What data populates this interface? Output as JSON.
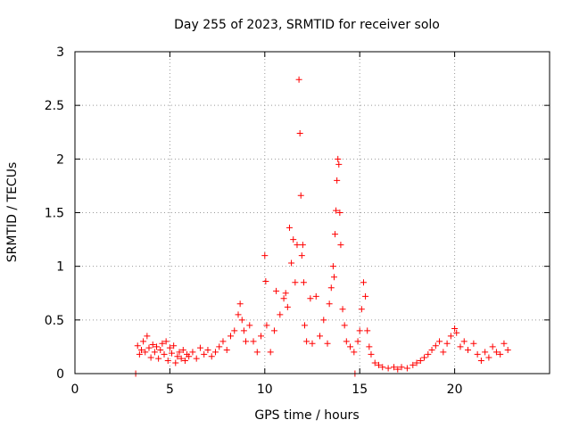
{
  "chart_data": {
    "type": "scatter",
    "title": "Day 255 of 2023, SRMTID for receiver solo",
    "xlabel": "GPS time / hours",
    "ylabel": "SRMTID / TECUs",
    "xlim": [
      0,
      25
    ],
    "ylim": [
      0,
      3
    ],
    "xticks": [
      0,
      5,
      10,
      15,
      20
    ],
    "yticks": [
      0,
      0.5,
      1,
      1.5,
      2,
      2.5,
      3
    ],
    "xtick_labels": [
      "0",
      "5",
      "10",
      "15",
      "20"
    ],
    "ytick_labels": [
      "0",
      "0.5",
      "1",
      "1.5",
      "2",
      "2.5",
      "3"
    ],
    "grid": true,
    "marker": "+",
    "marker_color": "#ff0000",
    "series": [
      {
        "name": "SRMTID",
        "color": "#ff0000",
        "points": [
          [
            3.2,
            0.0
          ],
          [
            14.75,
            0.0
          ],
          [
            3.3,
            0.26
          ],
          [
            3.4,
            0.18
          ],
          [
            3.5,
            0.22
          ],
          [
            3.6,
            0.3
          ],
          [
            3.7,
            0.2
          ],
          [
            3.8,
            0.35
          ],
          [
            3.9,
            0.24
          ],
          [
            4.0,
            0.15
          ],
          [
            4.1,
            0.27
          ],
          [
            4.2,
            0.2
          ],
          [
            4.3,
            0.25
          ],
          [
            4.4,
            0.14
          ],
          [
            4.5,
            0.22
          ],
          [
            4.6,
            0.28
          ],
          [
            4.7,
            0.18
          ],
          [
            4.8,
            0.3
          ],
          [
            4.9,
            0.12
          ],
          [
            5.0,
            0.24
          ],
          [
            5.1,
            0.19
          ],
          [
            5.2,
            0.26
          ],
          [
            5.3,
            0.1
          ],
          [
            5.4,
            0.16
          ],
          [
            5.5,
            0.2
          ],
          [
            5.6,
            0.14
          ],
          [
            5.7,
            0.22
          ],
          [
            5.8,
            0.12
          ],
          [
            5.9,
            0.18
          ],
          [
            6.0,
            0.16
          ],
          [
            6.2,
            0.2
          ],
          [
            6.4,
            0.14
          ],
          [
            6.6,
            0.24
          ],
          [
            6.8,
            0.18
          ],
          [
            7.0,
            0.22
          ],
          [
            7.2,
            0.16
          ],
          [
            7.4,
            0.2
          ],
          [
            7.6,
            0.25
          ],
          [
            7.8,
            0.3
          ],
          [
            8.0,
            0.22
          ],
          [
            8.2,
            0.35
          ],
          [
            8.4,
            0.4
          ],
          [
            8.6,
            0.55
          ],
          [
            8.7,
            0.65
          ],
          [
            8.8,
            0.5
          ],
          [
            8.9,
            0.4
          ],
          [
            9.0,
            0.3
          ],
          [
            9.2,
            0.45
          ],
          [
            9.4,
            0.3
          ],
          [
            9.6,
            0.2
          ],
          [
            9.8,
            0.35
          ],
          [
            10.0,
            1.1
          ],
          [
            10.05,
            0.86
          ],
          [
            10.1,
            0.45
          ],
          [
            10.3,
            0.2
          ],
          [
            10.5,
            0.4
          ],
          [
            10.6,
            0.77
          ],
          [
            10.8,
            0.55
          ],
          [
            11.0,
            0.7
          ],
          [
            11.1,
            0.75
          ],
          [
            11.2,
            0.62
          ],
          [
            11.3,
            1.36
          ],
          [
            11.4,
            1.03
          ],
          [
            11.5,
            1.25
          ],
          [
            11.6,
            0.85
          ],
          [
            11.7,
            1.2
          ],
          [
            11.8,
            2.74
          ],
          [
            11.85,
            2.24
          ],
          [
            11.9,
            1.66
          ],
          [
            11.95,
            1.1
          ],
          [
            12.0,
            1.2
          ],
          [
            12.05,
            0.85
          ],
          [
            12.1,
            0.45
          ],
          [
            12.2,
            0.3
          ],
          [
            12.4,
            0.7
          ],
          [
            12.5,
            0.28
          ],
          [
            12.7,
            0.72
          ],
          [
            12.9,
            0.35
          ],
          [
            13.1,
            0.5
          ],
          [
            13.3,
            0.28
          ],
          [
            13.4,
            0.65
          ],
          [
            13.5,
            0.8
          ],
          [
            13.6,
            1.0
          ],
          [
            13.65,
            0.9
          ],
          [
            13.7,
            1.3
          ],
          [
            13.75,
            1.52
          ],
          [
            13.8,
            1.8
          ],
          [
            13.85,
            2.0
          ],
          [
            13.9,
            1.95
          ],
          [
            13.95,
            1.5
          ],
          [
            14.0,
            1.2
          ],
          [
            14.1,
            0.6
          ],
          [
            14.2,
            0.45
          ],
          [
            14.3,
            0.3
          ],
          [
            14.5,
            0.25
          ],
          [
            14.7,
            0.2
          ],
          [
            14.9,
            0.3
          ],
          [
            15.0,
            0.4
          ],
          [
            15.1,
            0.6
          ],
          [
            15.2,
            0.85
          ],
          [
            15.3,
            0.72
          ],
          [
            15.4,
            0.4
          ],
          [
            15.5,
            0.25
          ],
          [
            15.6,
            0.18
          ],
          [
            15.8,
            0.1
          ],
          [
            16.0,
            0.08
          ],
          [
            16.2,
            0.06
          ],
          [
            16.5,
            0.05
          ],
          [
            16.8,
            0.06
          ],
          [
            17.0,
            0.04
          ],
          [
            17.2,
            0.06
          ],
          [
            17.5,
            0.05
          ],
          [
            17.8,
            0.08
          ],
          [
            18.0,
            0.1
          ],
          [
            18.2,
            0.12
          ],
          [
            18.4,
            0.15
          ],
          [
            18.6,
            0.18
          ],
          [
            18.8,
            0.22
          ],
          [
            19.0,
            0.26
          ],
          [
            19.2,
            0.3
          ],
          [
            19.4,
            0.2
          ],
          [
            19.6,
            0.28
          ],
          [
            19.8,
            0.35
          ],
          [
            20.0,
            0.42
          ],
          [
            20.1,
            0.38
          ],
          [
            20.3,
            0.25
          ],
          [
            20.5,
            0.3
          ],
          [
            20.7,
            0.22
          ],
          [
            21.0,
            0.28
          ],
          [
            21.2,
            0.18
          ],
          [
            21.4,
            0.12
          ],
          [
            21.6,
            0.2
          ],
          [
            21.8,
            0.15
          ],
          [
            22.0,
            0.25
          ],
          [
            22.2,
            0.2
          ],
          [
            22.4,
            0.18
          ],
          [
            22.6,
            0.28
          ],
          [
            22.8,
            0.22
          ]
        ]
      }
    ]
  }
}
